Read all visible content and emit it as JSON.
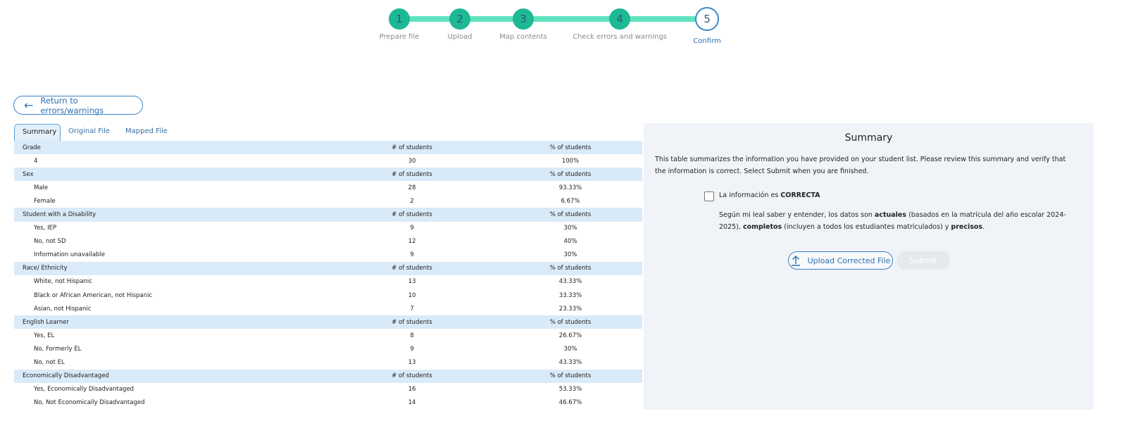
{
  "stepper": {
    "steps": [
      {
        "num": "1",
        "label": "Prepare file"
      },
      {
        "num": "2",
        "label": "Upload"
      },
      {
        "num": "3",
        "label": "Map contents"
      },
      {
        "num": "4",
        "label": "Check errors and warnings"
      },
      {
        "num": "5",
        "label": "Confirm"
      }
    ],
    "active_step": 5,
    "done_color": "#1db894",
    "track_color": "#5fe3c0"
  },
  "back_button": {
    "label": "Return to errors/warnings",
    "icon": "arrow-left-icon"
  },
  "tabs": [
    {
      "label": "Summary",
      "active": true
    },
    {
      "label": "Original File"
    },
    {
      "label": "Mapped File"
    }
  ],
  "table": {
    "sections": [
      {
        "title": "Grade",
        "col2": "# of students",
        "col3": "% of students",
        "rows": [
          [
            "4",
            "30",
            "100%"
          ]
        ]
      },
      {
        "title": "Sex",
        "col2": "# of students",
        "col3": "% of students",
        "rows": [
          [
            "Male",
            "28",
            "93.33%"
          ],
          [
            "Female",
            "2",
            "6.67%"
          ]
        ]
      },
      {
        "title": "Student with a Disability",
        "col2": "# of students",
        "col3": "% of students",
        "rows": [
          [
            "Yes, IEP",
            "9",
            "30%"
          ],
          [
            "No, not SD",
            "12",
            "40%"
          ],
          [
            "Information unavailable",
            "9",
            "30%"
          ]
        ]
      },
      {
        "title": "Race/ Ethnicity",
        "col2": "# of students",
        "col3": "% of students",
        "rows": [
          [
            "White, not Hispanic",
            "13",
            "43.33%"
          ],
          [
            "Black or African American, not Hispanic",
            "10",
            "33.33%"
          ],
          [
            "Asian, not Hispanic",
            "7",
            "23.33%"
          ]
        ]
      },
      {
        "title": "English Learner",
        "col2": "# of students",
        "col3": "% of students",
        "rows": [
          [
            "Yes, EL",
            "8",
            "26.67%"
          ],
          [
            "No, Formerly EL",
            "9",
            "30%"
          ],
          [
            "No, not EL",
            "13",
            "43.33%"
          ]
        ]
      },
      {
        "title": "Economically Disadvantaged",
        "col2": "# of students",
        "col3": "% of students",
        "rows": [
          [
            "Yes, Economically Disadvantaged",
            "16",
            "53.33%"
          ],
          [
            "No, Not Economically Disadvantaged",
            "14",
            "46.67%"
          ]
        ]
      }
    ]
  },
  "panel": {
    "title": "Summary",
    "description": "This table summarizes the information you have provided on your student list. Please review this summary and verify that the information is correct. Select Submit when you are finished.",
    "checkbox_prefix": "La información es ",
    "checkbox_bold": "CORRECTA",
    "checked": false,
    "legal": {
      "p1": "Según mi leal saber y entender, los datos son ",
      "b1": "actuales",
      "p2": " (basados en la matrícula del año escolar 2024-2025), ",
      "b2": "completos",
      "p3": " (incluyen a todos los estudiantes matriculados) y ",
      "b3": "precisos",
      "p4": "."
    },
    "upload_label": "Upload Corrected File",
    "submit_label": "Submit"
  }
}
